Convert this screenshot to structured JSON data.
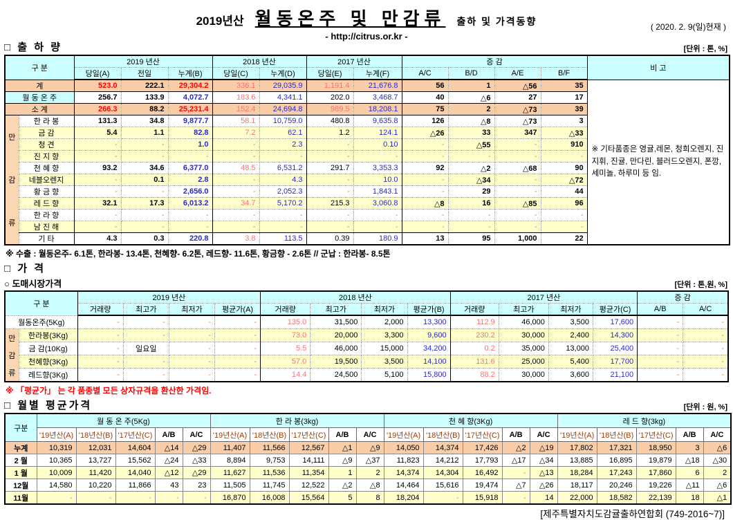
{
  "page": {
    "title_prefix": "2019년산",
    "title_main": "월동온주 및 만감류",
    "title_suffix": "출하 및 가격동향",
    "url_line": "- http://citrus.or.kr -",
    "date_note": "( 2020. 2. 9(일)현재 )",
    "footer": "[제주특별자치도감귤출하연합회 (749-2016~7)]"
  },
  "colors": {
    "header_bg": "#CCFFFF",
    "total_row_bg": "#F9CDA8",
    "stripe_row_bg": "#FFFFCC",
    "group_col_bg": "#FAD6B2",
    "red_value": "#FF0000",
    "salmon_value": "#FF7070",
    "blue_value": "#2929CC"
  },
  "shipment": {
    "section_title": "□ 출 하 량",
    "unit": "[단위 : 톤, %]",
    "header": {
      "gubun": "구      분",
      "y2019": "2019 년산",
      "y2018": "2018 년산",
      "y2017": "2017 년산",
      "change": "증      감",
      "note": "비 고",
      "cols": [
        "당일(A)",
        "전일",
        "누계(B)",
        "당일(C)",
        "누계(D)",
        "당일(E)",
        "누계(F)",
        "A/C",
        "B/D",
        "A/E",
        "B/F"
      ]
    },
    "group_label": "만감류",
    "note_text": "※ 기타품종은 영귤,레몬, 청희오렌지, 진지휘, 진귤, 만다린, 블러드오렌지, 폰깡,세미놀, 하루미 등 임.",
    "rows": [
      {
        "label": "계",
        "type": "total",
        "values": [
          "523.0",
          "222.1",
          "29,304.2",
          "336.1",
          "29,035.9",
          "1,191.4",
          "21,676.8",
          "56",
          "1",
          "△56",
          "35"
        ]
      },
      {
        "label": "월 동 온 주",
        "type": "wd",
        "values": [
          "256.7",
          "133.9",
          "4,072.7",
          "183.6",
          "4,341.1",
          "202.0",
          "3,468.7",
          "40",
          "△6",
          "27",
          "17"
        ]
      },
      {
        "label": "소    계",
        "type": "total",
        "values": [
          "266.3",
          "88.2",
          "25,231.4",
          "152.4",
          "24,694.8",
          "989.5",
          "18,208.1",
          "75",
          "2",
          "△73",
          "39"
        ]
      },
      {
        "label": "한 라 봉",
        "type": "item",
        "values": [
          "131.3",
          "34.8",
          "9,877.7",
          "58.1",
          "10,759.0",
          "480.8",
          "9,635.8",
          "126",
          "△8",
          "△73",
          "3"
        ]
      },
      {
        "label": "금   감",
        "type": "item",
        "values": [
          "5.4",
          "1.1",
          "82.8",
          "7.2",
          "62.1",
          "1.2",
          "124.1",
          "△26",
          "33",
          "347",
          "△33"
        ]
      },
      {
        "label": "청   견",
        "type": "item",
        "values": [
          "-",
          "-",
          "1.0",
          "-",
          "2.3",
          "-",
          "0.10",
          "-",
          "△55",
          "-",
          "910"
        ]
      },
      {
        "label": "진 지 향",
        "type": "item",
        "values": [
          "-",
          "-",
          "-",
          "-",
          "-",
          "-",
          "-",
          "-",
          "-",
          "-",
          "-"
        ]
      },
      {
        "label": "천 혜 향",
        "type": "item",
        "values": [
          "93.2",
          "34.6",
          "6,377.0",
          "48.5",
          "6,531.2",
          "291.7",
          "3,353.3",
          "92",
          "△2",
          "△68",
          "90"
        ]
      },
      {
        "label": "네블오렌지",
        "type": "item",
        "values": [
          "-",
          "0.1",
          "2.8",
          "-",
          "4.3",
          "-",
          "10.0",
          "-",
          "△34",
          "-",
          "△72"
        ]
      },
      {
        "label": "황 금 향",
        "type": "item",
        "values": [
          "-",
          "-",
          "2,656.0",
          "-",
          "2,052.3",
          "-",
          "1,843.1",
          "-",
          "29",
          "-",
          "44"
        ]
      },
      {
        "label": "레 드 향",
        "type": "item",
        "values": [
          "32.1",
          "17.3",
          "6,013.2",
          "34.7",
          "5,170.2",
          "215.3",
          "3,060.8",
          "△8",
          "16",
          "△85",
          "96"
        ]
      },
      {
        "label": "한 라 향",
        "type": "item",
        "values": [
          "-",
          "-",
          "-",
          "-",
          "-",
          "-",
          "-",
          "-",
          "-",
          "-",
          "-"
        ]
      },
      {
        "label": "남 진 해",
        "type": "item",
        "values": [
          "-",
          "-",
          "-",
          "-",
          "-",
          "-",
          "-",
          "-",
          "-",
          "-",
          "-"
        ]
      },
      {
        "label": "기   타",
        "type": "item",
        "values": [
          "4.3",
          "0.3",
          "220.8",
          "3.8",
          "113.5",
          "0.39",
          "180.9",
          "13",
          "95",
          "1,000",
          "22"
        ]
      }
    ],
    "footnote": "※ 수출 : 월동온주- 6.1톤, 한라봉- 13.4톤, 천혜향- 6.2톤, 레드향- 11.6톤, 황금향 - 2.6톤  // 군납 : 한라봉- 8.5톤"
  },
  "price": {
    "section_title": "□ 가    격",
    "sub_title": "○ 도매시장가격",
    "unit": "[단위 : 톤,원, %]",
    "header": {
      "gubun": "구      분",
      "y2019": "2019 년산",
      "y2018": "2018 년산",
      "y2017": "2017 년산",
      "change": "증  감",
      "cols": [
        "거래량",
        "최고가",
        "최저가",
        "평균가(A)",
        "거래량",
        "최고가",
        "최저가",
        "평균가(B)",
        "거래량",
        "최고가",
        "최저가",
        "평균가(C)",
        "A/B",
        "A/C"
      ]
    },
    "group_label": "만감류",
    "rows": [
      {
        "label": "월동온주(5Kg)",
        "values": [
          "-",
          "-",
          "-",
          "-",
          "135.0",
          "31,500",
          "2,000",
          "13,300",
          "112.9",
          "46,000",
          "3,500",
          "17,600",
          "-",
          "-"
        ]
      },
      {
        "label": "한라봉(3Kg)",
        "values": [
          "-",
          "-",
          "-",
          "-",
          "73.0",
          "20,000",
          "3,300",
          "9,600",
          "230.2",
          "30,000",
          "2,400",
          "14,300",
          "-",
          "-"
        ]
      },
      {
        "label": "금 감(10Kg)",
        "values": [
          "-",
          "일요일",
          "-",
          "-",
          "5.5",
          "46,000",
          "15,000",
          "34,200",
          "0.2",
          "35,000",
          "13,000",
          "25,400",
          "-",
          "-"
        ]
      },
      {
        "label": "천혜향(3Kg)",
        "values": [
          "-",
          "-",
          "-",
          "-",
          "57.0",
          "19,500",
          "3,500",
          "14,100",
          "131.6",
          "25,000",
          "5,400",
          "17,700",
          "-",
          "-"
        ]
      },
      {
        "label": "레드향(3Kg)",
        "values": [
          "-",
          "-",
          "-",
          "-",
          "14.4",
          "24,500",
          "5,100",
          "15,800",
          "88.2",
          "30,000",
          "3,600",
          "21,100",
          "-",
          "-"
        ]
      }
    ],
    "footnote": "※  「평균가」 는 각 품종별 모든 상자규격을 환산한 가격임."
  },
  "monthly": {
    "section_title": "□ 월별 평균가격",
    "unit": "[단위 : 원, %]",
    "row_header": "구분",
    "groups": [
      {
        "name": "월 동 온 주(5Kg)"
      },
      {
        "name": "한  라  봉(3kg)"
      },
      {
        "name": "천 혜 향(3Kg)"
      },
      {
        "name": "레 드 향(3kg)"
      }
    ],
    "sub_cols": [
      "'19년산(A)",
      "'18년산(B)",
      "'17년산(C)",
      "A/B",
      "A/C"
    ],
    "rows": [
      {
        "label": "누계",
        "values": [
          [
            "10,319",
            "12,031",
            "14,604",
            "△14",
            "△29"
          ],
          [
            "11,407",
            "11,566",
            "12,567",
            "△1",
            "△9"
          ],
          [
            "14,050",
            "14,374",
            "17,426",
            "△2",
            "△19"
          ],
          [
            "17,802",
            "17,321",
            "18,950",
            "3",
            "△6"
          ]
        ]
      },
      {
        "label": "2 월",
        "values": [
          [
            "10,365",
            "13,727",
            "15,562",
            "△24",
            "△33"
          ],
          [
            "8,894",
            "9,753",
            "14,111",
            "△9",
            "△37"
          ],
          [
            "11,823",
            "14,212",
            "17,793",
            "△17",
            "△34"
          ],
          [
            "13,885",
            "16,895",
            "19,879",
            "△18",
            "△30"
          ]
        ]
      },
      {
        "label": "1 월",
        "values": [
          [
            "10,009",
            "11,420",
            "14,040",
            "△12",
            "△29"
          ],
          [
            "11,627",
            "11,536",
            "11,354",
            "1",
            "2"
          ],
          [
            "14,374",
            "14,304",
            "16,492",
            "-",
            "△13"
          ],
          [
            "18,284",
            "17,243",
            "17,860",
            "6",
            "2"
          ]
        ]
      },
      {
        "label": "12월",
        "values": [
          [
            "14,580",
            "10,220",
            "11,866",
            "43",
            "23"
          ],
          [
            "11,505",
            "11,745",
            "12,522",
            "△2",
            "△8"
          ],
          [
            "14,464",
            "15,616",
            "19,474",
            "△7",
            "△26"
          ],
          [
            "18,117",
            "20,246",
            "19,226",
            "△11",
            "△6"
          ]
        ]
      },
      {
        "label": "11월",
        "values": [
          [
            "-",
            "-",
            "-",
            "-",
            "-"
          ],
          [
            "16,870",
            "16,008",
            "15,564",
            "5",
            "8"
          ],
          [
            "18,204",
            "-",
            "15,918",
            "-",
            "14"
          ],
          [
            "22,000",
            "18,582",
            "22,139",
            "18",
            "△1"
          ]
        ]
      }
    ]
  }
}
